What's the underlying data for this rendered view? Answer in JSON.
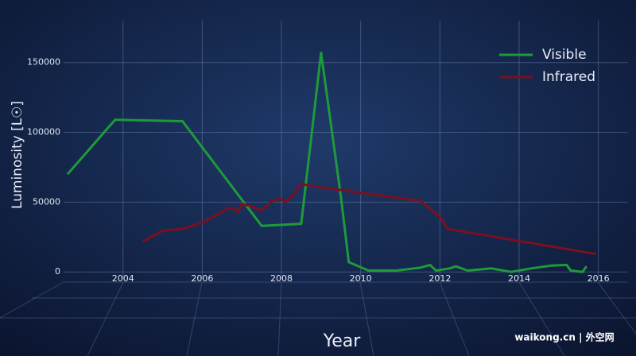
{
  "chart_data": {
    "type": "line",
    "x_label": "Year",
    "y_label": "Luminosity [L☉]",
    "xlim": [
      2002.5,
      2016.75
    ],
    "ylim": [
      -5000,
      180000
    ],
    "xticks": [
      2004,
      2006,
      2008,
      2010,
      2012,
      2014,
      2016
    ],
    "yticks": [
      0,
      50000,
      100000,
      150000
    ],
    "grid": true,
    "legend": "upper right",
    "series": [
      {
        "name": "Visible",
        "color": "#1e9a3a",
        "x": [
          2002.6,
          2003.8,
          2005.5,
          2007.5,
          2008.5,
          2009.0,
          2009.5,
          2009.7,
          2010.2,
          2010.9,
          2011.5,
          2011.75,
          2011.9,
          2012.25,
          2012.4,
          2012.7,
          2013.3,
          2013.8,
          2014.3,
          2014.8,
          2015.2,
          2015.3,
          2015.6,
          2015.7
        ],
        "values": [
          70000,
          109000,
          108000,
          33000,
          34500,
          157000,
          54000,
          7000,
          1000,
          1000,
          3000,
          5000,
          1000,
          2500,
          4000,
          1000,
          2500,
          0,
          2500,
          4500,
          5000,
          1000,
          0,
          4000
        ]
      },
      {
        "name": "Infrared",
        "color": "#7a1020",
        "x": [
          2004.5,
          2005.0,
          2005.5,
          2006.0,
          2006.7,
          2006.9,
          2007.0,
          2007.2,
          2007.5,
          2007.75,
          2007.95,
          2008.1,
          2008.3,
          2008.5,
          2008.8,
          2011.5,
          2012.0,
          2012.2,
          2015.95
        ],
        "values": [
          21800,
          29500,
          30800,
          35300,
          46200,
          43000,
          48700,
          47400,
          44200,
          50500,
          52700,
          50000,
          55400,
          63000,
          61400,
          51000,
          39600,
          30800,
          12800
        ]
      }
    ],
    "watermark": "waikong.cn | 外空网"
  }
}
